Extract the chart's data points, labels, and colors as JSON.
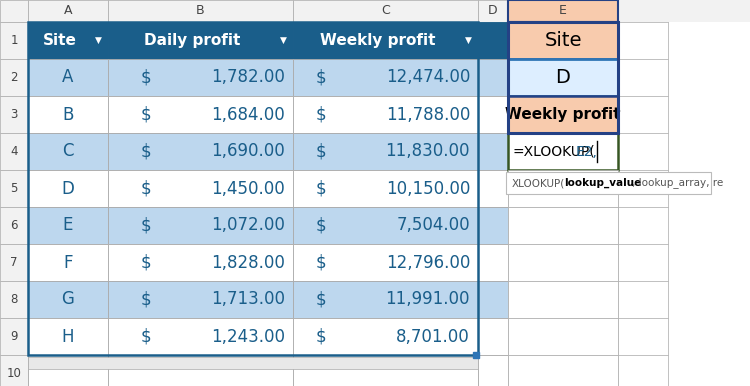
{
  "col_headers": [
    "A",
    "B",
    "C",
    "D",
    "E"
  ],
  "sites": [
    "A",
    "B",
    "C",
    "D",
    "E",
    "F",
    "G",
    "H"
  ],
  "daily_profit": [
    "1,782.00",
    "1,684.00",
    "1,690.00",
    "1,450.00",
    "1,072.00",
    "1,828.00",
    "1,713.00",
    "1,243.00"
  ],
  "weekly_profit": [
    "12,474.00",
    "11,788.00",
    "11,830.00",
    "10,150.00",
    "7,504.00",
    "12,796.00",
    "11,991.00",
    "8,701.00"
  ],
  "header_bg": "#1a5e8a",
  "header_text": "#FFFFFF",
  "alt_row_bg": "#BDD7EE",
  "white_row_bg": "#FFFFFF",
  "table_border_color": "#1a5e8a",
  "e1_bg": "#F8CBAD",
  "e2_bg": "#DDEEFF",
  "e3_bg": "#F8CBAD",
  "e4_bg": "#FFFFFF",
  "e_dark_border": "#244185",
  "e_blue_border": "#2E75B6",
  "e_green_border": "#375623",
  "formula_main": "#000000",
  "formula_ref": "#1a5e8a",
  "tooltip_bg": "#FFFFFF",
  "tooltip_border": "#BBBBBB",
  "tooltip_text_normal": "XLOOKUP(",
  "tooltip_text_bold": "lookup_value",
  "tooltip_text_rest": ", lookup_array, re",
  "grid_color": "#AAAAAA",
  "row_label_bg": "#F2F2F2",
  "col_label_bg": "#F2F2F2",
  "col_label_text": "#444444",
  "row_label_text": "#444444",
  "data_text_color": "#1a5e8a",
  "figsize": [
    7.5,
    3.86
  ],
  "dpi": 100
}
